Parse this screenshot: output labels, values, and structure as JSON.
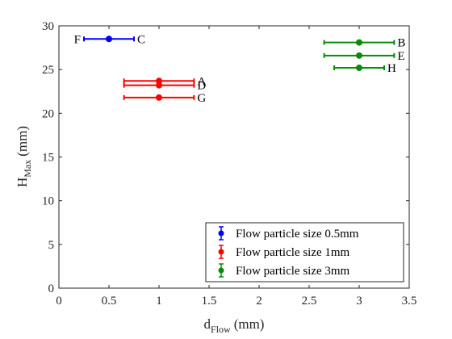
{
  "chart_data": {
    "type": "scatter",
    "xlabel": {
      "main": "d",
      "sub": "Flow",
      "unit": "(mm)"
    },
    "ylabel": {
      "main": "H",
      "sub": "Max",
      "unit": "(mm)"
    },
    "xlim": [
      0,
      3.5
    ],
    "ylim": [
      0,
      30
    ],
    "xticks": [
      "0",
      "0.5",
      "1",
      "1.5",
      "2",
      "2.5",
      "3",
      "3.5"
    ],
    "yticks": [
      "0",
      "5",
      "10",
      "15",
      "20",
      "25",
      "30"
    ],
    "grid": false,
    "legend_position": "bottom-right",
    "series": [
      {
        "name": "Flow particle size 0.5mm",
        "color": "#0000ff",
        "points": [
          {
            "x": 0.5,
            "y": 28.5,
            "err": 0.25,
            "labels": [
              "F",
              "C"
            ]
          }
        ]
      },
      {
        "name": "Flow particle size 1mm",
        "color": "#ff0000",
        "points": [
          {
            "x": 1.0,
            "y": 23.7,
            "err": 0.35,
            "labels": [
              "A"
            ]
          },
          {
            "x": 1.0,
            "y": 23.2,
            "err": 0.35,
            "labels": [
              "D"
            ]
          },
          {
            "x": 1.0,
            "y": 21.8,
            "err": 0.35,
            "labels": [
              "G"
            ]
          }
        ]
      },
      {
        "name": "Flow particle size 3mm",
        "color": "#0a8a0a",
        "points": [
          {
            "x": 3.0,
            "y": 28.1,
            "err": 0.35,
            "labels": [
              "B"
            ]
          },
          {
            "x": 3.0,
            "y": 26.6,
            "err": 0.35,
            "labels": [
              "E"
            ]
          },
          {
            "x": 3.0,
            "y": 25.2,
            "err": 0.25,
            "labels": [
              "H"
            ]
          }
        ]
      }
    ]
  }
}
